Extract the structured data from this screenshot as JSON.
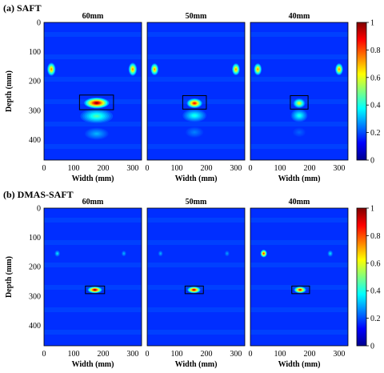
{
  "chart_data": [
    {
      "type": "heatmap",
      "panel_label": "(a) SAFT",
      "ylabel": "Depth (mm)",
      "xlabel": "Width (mm)",
      "x_ticks": [
        0,
        100,
        200,
        300
      ],
      "y_ticks": [
        0,
        100,
        200,
        300,
        400
      ],
      "x_range": [
        0,
        330
      ],
      "y_range": [
        0,
        470
      ],
      "colorbar": {
        "ticks": [
          0,
          0.2,
          0.4,
          0.6,
          0.8,
          1
        ],
        "range": [
          0,
          1
        ]
      },
      "subplots": [
        {
          "title": "60mm",
          "rectangle": {
            "x": [
              120,
              235
            ],
            "y": [
              248,
              298
            ]
          },
          "blobs": [
            {
              "x": 25,
              "y": 160,
              "rx": 14,
              "ry": 22,
              "amp": 0.75
            },
            {
              "x": 300,
              "y": 160,
              "rx": 14,
              "ry": 22,
              "amp": 0.75
            },
            {
              "x": 178,
              "y": 275,
              "rx": 42,
              "ry": 18,
              "amp": 1.0
            },
            {
              "x": 178,
              "y": 320,
              "rx": 55,
              "ry": 25,
              "amp": 0.45
            },
            {
              "x": 178,
              "y": 380,
              "rx": 40,
              "ry": 20,
              "amp": 0.3
            }
          ]
        },
        {
          "title": "50mm",
          "rectangle": {
            "x": [
              120,
              200
            ],
            "y": [
              250,
              296
            ]
          },
          "blobs": [
            {
              "x": 25,
              "y": 160,
              "rx": 13,
              "ry": 20,
              "amp": 0.75
            },
            {
              "x": 300,
              "y": 160,
              "rx": 13,
              "ry": 20,
              "amp": 0.75
            },
            {
              "x": 160,
              "y": 276,
              "rx": 26,
              "ry": 16,
              "amp": 0.88
            },
            {
              "x": 160,
              "y": 318,
              "rx": 40,
              "ry": 22,
              "amp": 0.4
            },
            {
              "x": 160,
              "y": 375,
              "rx": 30,
              "ry": 18,
              "amp": 0.25
            }
          ]
        },
        {
          "title": "40mm",
          "rectangle": {
            "x": [
              135,
              195
            ],
            "y": [
              250,
              296
            ]
          },
          "blobs": [
            {
              "x": 25,
              "y": 160,
              "rx": 13,
              "ry": 20,
              "amp": 0.75
            },
            {
              "x": 300,
              "y": 160,
              "rx": 13,
              "ry": 20,
              "amp": 0.75
            },
            {
              "x": 165,
              "y": 276,
              "rx": 20,
              "ry": 16,
              "amp": 0.62
            },
            {
              "x": 165,
              "y": 318,
              "rx": 28,
              "ry": 22,
              "amp": 0.4
            },
            {
              "x": 165,
              "y": 375,
              "rx": 22,
              "ry": 16,
              "amp": 0.22
            }
          ]
        }
      ]
    },
    {
      "type": "heatmap",
      "panel_label": "(b) DMAS-SAFT",
      "ylabel": "Depth (mm)",
      "xlabel": "Width (mm)",
      "x_ticks": [
        0,
        100,
        200,
        300
      ],
      "y_ticks": [
        0,
        100,
        200,
        300,
        400
      ],
      "x_range": [
        0,
        330
      ],
      "y_range": [
        0,
        470
      ],
      "colorbar": {
        "ticks": [
          0,
          0.2,
          0.4,
          0.6,
          0.8,
          1
        ],
        "range": [
          0,
          1
        ]
      },
      "subplots": [
        {
          "title": "60mm",
          "rectangle": {
            "x": [
              140,
              205
            ],
            "y": [
              266,
              292
            ]
          },
          "blobs": [
            {
              "x": 45,
              "y": 155,
              "rx": 9,
              "ry": 11,
              "amp": 0.35
            },
            {
              "x": 270,
              "y": 155,
              "rx": 8,
              "ry": 10,
              "amp": 0.3
            },
            {
              "x": 172,
              "y": 279,
              "rx": 24,
              "ry": 11,
              "amp": 1.0
            }
          ]
        },
        {
          "title": "50mm",
          "rectangle": {
            "x": [
              128,
              190
            ],
            "y": [
              266,
              292
            ]
          },
          "blobs": [
            {
              "x": 45,
              "y": 155,
              "rx": 8,
              "ry": 10,
              "amp": 0.3
            },
            {
              "x": 270,
              "y": 155,
              "rx": 8,
              "ry": 10,
              "amp": 0.28
            },
            {
              "x": 158,
              "y": 279,
              "rx": 22,
              "ry": 11,
              "amp": 0.95
            }
          ]
        },
        {
          "title": "40mm",
          "rectangle": {
            "x": [
              140,
              200
            ],
            "y": [
              266,
              292
            ]
          },
          "blobs": [
            {
              "x": 45,
              "y": 155,
              "rx": 11,
              "ry": 13,
              "amp": 0.85
            },
            {
              "x": 270,
              "y": 155,
              "rx": 9,
              "ry": 11,
              "amp": 0.35
            },
            {
              "x": 168,
              "y": 279,
              "rx": 20,
              "ry": 11,
              "amp": 0.9
            }
          ]
        }
      ]
    }
  ]
}
